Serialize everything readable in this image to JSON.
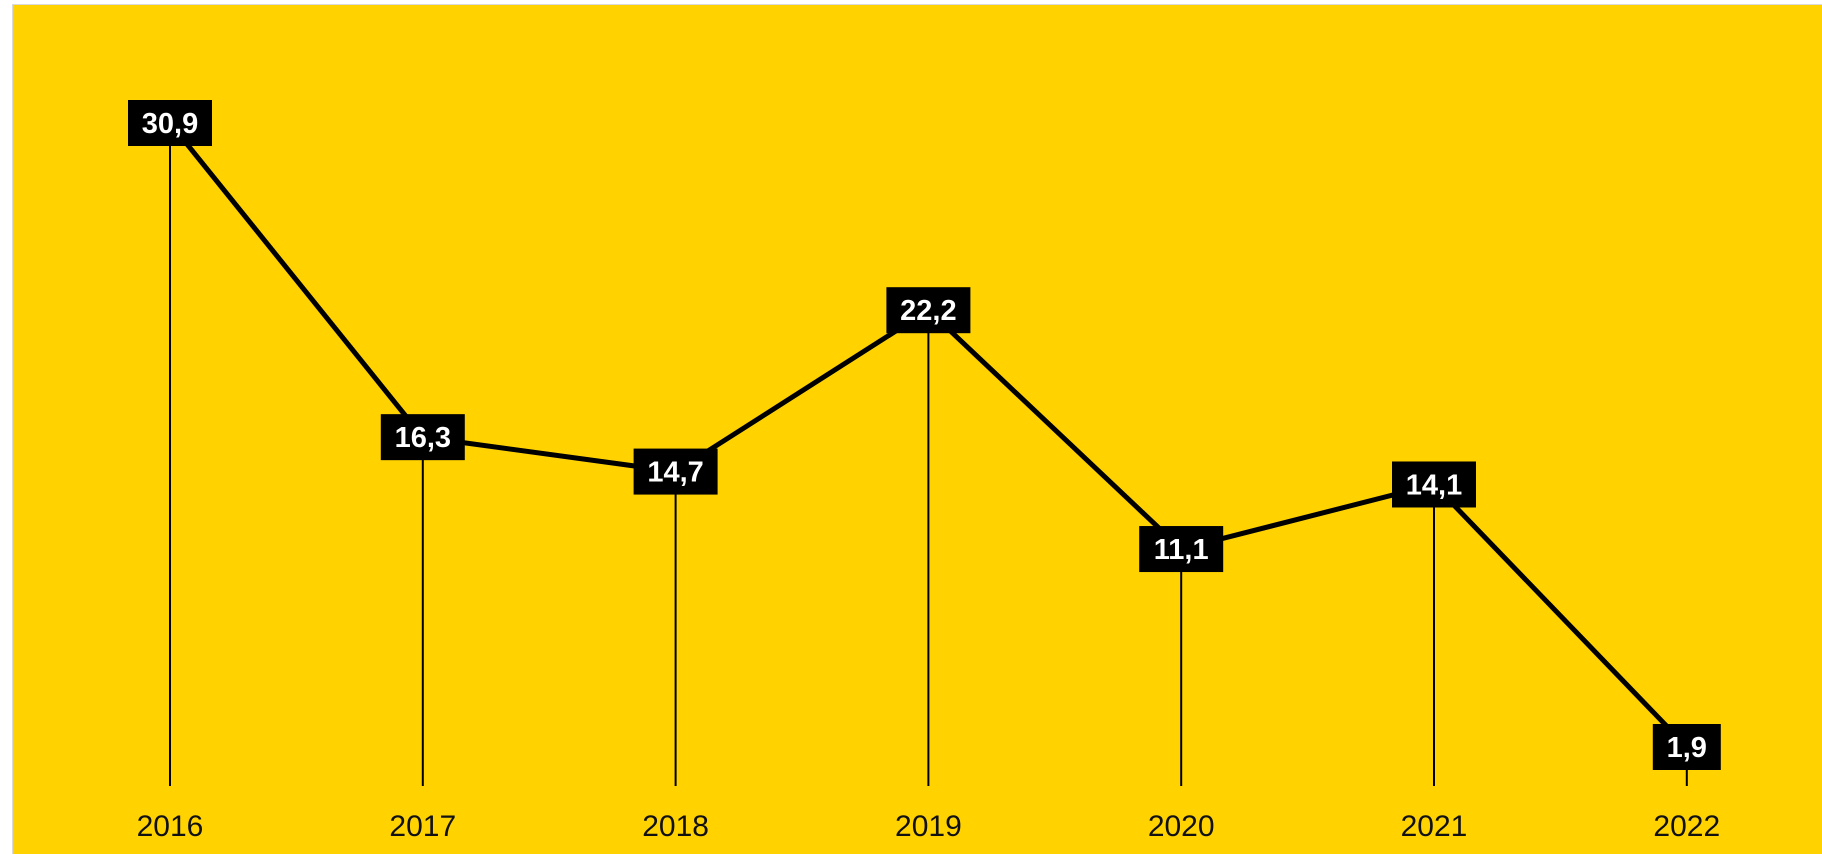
{
  "chart_data": {
    "type": "line",
    "categories": [
      "2016",
      "2017",
      "2018",
      "2019",
      "2020",
      "2021",
      "2022"
    ],
    "values": [
      30.9,
      16.3,
      14.7,
      22.2,
      11.1,
      14.1,
      1.9
    ],
    "value_labels": [
      "30,9",
      "16,3",
      "14,7",
      "22,2",
      "11,1",
      "14,1",
      "1,9"
    ],
    "title": "",
    "xlabel": "",
    "ylabel": "",
    "grid": false,
    "legend": "none",
    "colors": {
      "background": "#FFD200",
      "line": "#000000",
      "label_box": "#000000",
      "label_text": "#ffffff"
    }
  }
}
